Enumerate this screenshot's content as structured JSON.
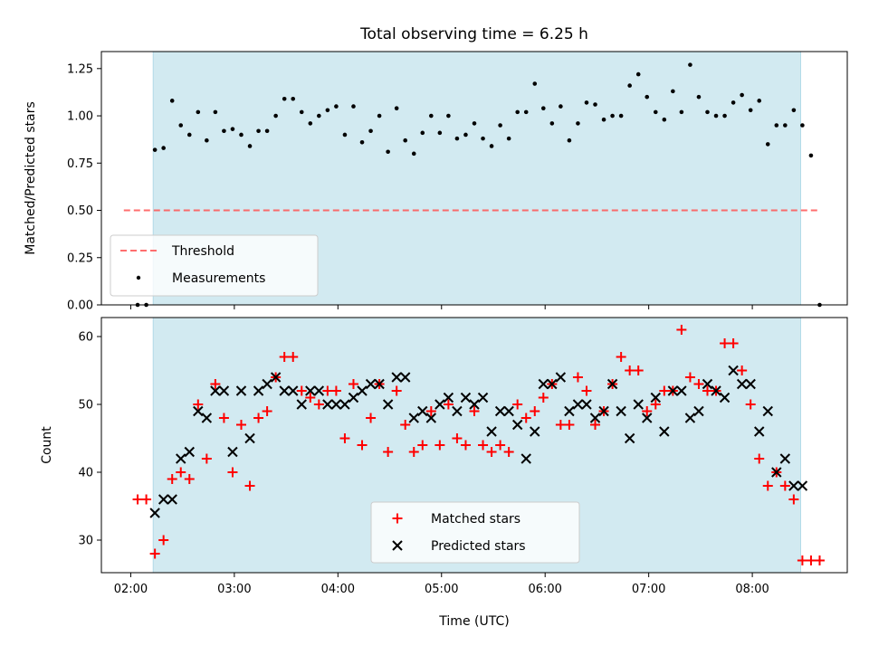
{
  "figure": {
    "title": "Total observing time = 6.25 h",
    "colors": {
      "shade": "#add8e6",
      "threshold": "#ff5555",
      "measurements": "#000000",
      "matched": "#ff0000",
      "predicted": "#000000"
    }
  },
  "chart_data": [
    {
      "type": "scatter",
      "name": "ratio",
      "ylabel": "Matched/Predicted stars",
      "xlabel": "",
      "xlim": [
        "01:43",
        "08:55"
      ],
      "ylim": [
        0,
        1.34
      ],
      "yticks": [
        0.0,
        0.25,
        0.5,
        0.75,
        1.0,
        1.25
      ],
      "ytick_labels": [
        "0.00",
        "0.25",
        "0.50",
        "0.75",
        "1.00",
        "1.25"
      ],
      "shaded_span": [
        "02:13",
        "08:28"
      ],
      "legend": {
        "location": "lower left",
        "entries": [
          "Threshold",
          "Measurements"
        ]
      },
      "threshold": {
        "name": "Threshold",
        "value": 0.5,
        "x_range": [
          "01:56",
          "08:38"
        ]
      },
      "series": [
        {
          "name": "Measurements",
          "x": [
            "02:04",
            "02:09",
            "02:14",
            "02:19",
            "02:24",
            "02:29",
            "02:34",
            "02:39",
            "02:44",
            "02:49",
            "02:54",
            "02:59",
            "03:04",
            "03:09",
            "03:14",
            "03:19",
            "03:24",
            "03:29",
            "03:34",
            "03:39",
            "03:44",
            "03:49",
            "03:54",
            "03:59",
            "04:04",
            "04:09",
            "04:14",
            "04:19",
            "04:24",
            "04:29",
            "04:34",
            "04:39",
            "04:44",
            "04:49",
            "04:54",
            "04:59",
            "05:04",
            "05:09",
            "05:14",
            "05:19",
            "05:24",
            "05:29",
            "05:34",
            "05:39",
            "05:44",
            "05:49",
            "05:54",
            "05:59",
            "06:04",
            "06:09",
            "06:14",
            "06:19",
            "06:24",
            "06:29",
            "06:34",
            "06:39",
            "06:44",
            "06:49",
            "06:54",
            "06:59",
            "07:04",
            "07:09",
            "07:14",
            "07:19",
            "07:24",
            "07:29",
            "07:34",
            "07:39",
            "07:44",
            "07:49",
            "07:54",
            "07:59",
            "08:04",
            "08:09",
            "08:14",
            "08:19",
            "08:24",
            "08:29",
            "08:34",
            "08:39"
          ],
          "y": [
            0.0,
            0.0,
            0.82,
            0.83,
            1.08,
            0.95,
            0.9,
            1.02,
            0.87,
            1.02,
            0.92,
            0.93,
            0.9,
            0.84,
            0.92,
            0.92,
            1.0,
            1.09,
            1.09,
            1.02,
            0.96,
            1.0,
            1.03,
            1.05,
            0.9,
            1.05,
            0.86,
            0.92,
            1.0,
            0.81,
            1.04,
            0.87,
            0.8,
            0.91,
            1.0,
            0.91,
            1.0,
            0.88,
            0.9,
            0.96,
            0.88,
            0.84,
            0.95,
            0.88,
            1.02,
            1.02,
            1.17,
            1.04,
            0.96,
            1.05,
            0.87,
            0.96,
            1.07,
            1.06,
            0.98,
            1.0,
            1.0,
            1.16,
            1.22,
            1.1,
            1.02,
            0.98,
            1.13,
            1.02,
            1.27,
            1.1,
            1.02,
            1.0,
            1.0,
            1.07,
            1.11,
            1.03,
            1.08,
            0.85,
            0.95,
            0.95,
            1.03,
            0.95,
            0.79,
            0.0
          ]
        }
      ]
    },
    {
      "type": "scatter",
      "name": "counts",
      "xlabel": "Time (UTC)",
      "ylabel": "Count",
      "xlim": [
        "01:43",
        "08:55"
      ],
      "ylim": [
        25.2,
        62.8
      ],
      "xticks": [
        "02:00",
        "03:00",
        "04:00",
        "05:00",
        "06:00",
        "07:00",
        "08:00"
      ],
      "yticks": [
        30,
        40,
        50,
        60
      ],
      "ytick_labels": [
        "30",
        "40",
        "50",
        "60"
      ],
      "shaded_span": [
        "02:13",
        "08:28"
      ],
      "legend": {
        "location": "lower center",
        "entries": [
          "Matched stars",
          "Predicted stars"
        ]
      },
      "series": [
        {
          "name": "Matched stars",
          "marker": "+",
          "x": [
            "02:04",
            "02:09",
            "02:14",
            "02:19",
            "02:24",
            "02:29",
            "02:34",
            "02:39",
            "02:44",
            "02:49",
            "02:54",
            "02:59",
            "03:04",
            "03:09",
            "03:14",
            "03:19",
            "03:24",
            "03:29",
            "03:34",
            "03:39",
            "03:44",
            "03:49",
            "03:54",
            "03:59",
            "04:04",
            "04:09",
            "04:14",
            "04:19",
            "04:24",
            "04:29",
            "04:34",
            "04:39",
            "04:44",
            "04:49",
            "04:54",
            "04:59",
            "05:04",
            "05:09",
            "05:14",
            "05:19",
            "05:24",
            "05:29",
            "05:34",
            "05:39",
            "05:44",
            "05:49",
            "05:54",
            "05:59",
            "06:04",
            "06:09",
            "06:14",
            "06:19",
            "06:24",
            "06:29",
            "06:34",
            "06:39",
            "06:44",
            "06:49",
            "06:54",
            "06:59",
            "07:04",
            "07:09",
            "07:14",
            "07:19",
            "07:24",
            "07:29",
            "07:34",
            "07:39",
            "07:44",
            "07:49",
            "07:54",
            "07:59",
            "08:04",
            "08:09",
            "08:14",
            "08:19",
            "08:24",
            "08:29",
            "08:34",
            "08:39"
          ],
          "y": [
            36,
            36,
            28,
            30,
            39,
            40,
            39,
            50,
            42,
            53,
            48,
            40,
            47,
            38,
            48,
            49,
            54,
            57,
            57,
            52,
            51,
            50,
            52,
            52,
            45,
            53,
            44,
            48,
            53,
            43,
            52,
            47,
            43,
            44,
            49,
            44,
            50,
            45,
            44,
            49,
            44,
            43,
            44,
            43,
            50,
            48,
            49,
            51,
            53,
            47,
            47,
            54,
            52,
            47,
            49,
            53,
            57,
            55,
            55,
            49,
            50,
            52,
            52,
            61,
            54,
            53,
            52,
            52,
            59,
            59,
            55,
            50,
            42,
            38,
            40,
            38,
            36,
            27,
            27,
            27
          ]
        },
        {
          "name": "Predicted stars",
          "marker": "x",
          "x": [
            "02:14",
            "02:19",
            "02:24",
            "02:29",
            "02:34",
            "02:39",
            "02:44",
            "02:49",
            "02:54",
            "02:59",
            "03:04",
            "03:09",
            "03:14",
            "03:19",
            "03:24",
            "03:29",
            "03:34",
            "03:39",
            "03:44",
            "03:49",
            "03:54",
            "03:59",
            "04:04",
            "04:09",
            "04:14",
            "04:19",
            "04:24",
            "04:29",
            "04:34",
            "04:39",
            "04:44",
            "04:49",
            "04:54",
            "04:59",
            "05:04",
            "05:09",
            "05:14",
            "05:19",
            "05:24",
            "05:29",
            "05:34",
            "05:39",
            "05:44",
            "05:49",
            "05:54",
            "05:59",
            "06:04",
            "06:09",
            "06:14",
            "06:19",
            "06:24",
            "06:29",
            "06:34",
            "06:39",
            "06:44",
            "06:49",
            "06:54",
            "06:59",
            "07:04",
            "07:09",
            "07:14",
            "07:19",
            "07:24",
            "07:29",
            "07:34",
            "07:39",
            "07:44",
            "07:49",
            "07:54",
            "07:59",
            "08:04",
            "08:09",
            "08:14",
            "08:19",
            "08:24",
            "08:29"
          ],
          "y": [
            34,
            36,
            36,
            42,
            43,
            49,
            48,
            52,
            52,
            43,
            52,
            45,
            52,
            53,
            54,
            52,
            52,
            50,
            52,
            52,
            50,
            50,
            50,
            51,
            52,
            53,
            53,
            50,
            54,
            54,
            48,
            49,
            48,
            50,
            51,
            49,
            51,
            50,
            51,
            46,
            49,
            49,
            47,
            42,
            46,
            53,
            53,
            54,
            49,
            50,
            50,
            48,
            49,
            53,
            49,
            45,
            50,
            48,
            51,
            46,
            52,
            52,
            48,
            49,
            53,
            52,
            51,
            55,
            53,
            53,
            46,
            49,
            40,
            42,
            38,
            38
          ]
        }
      ]
    }
  ]
}
